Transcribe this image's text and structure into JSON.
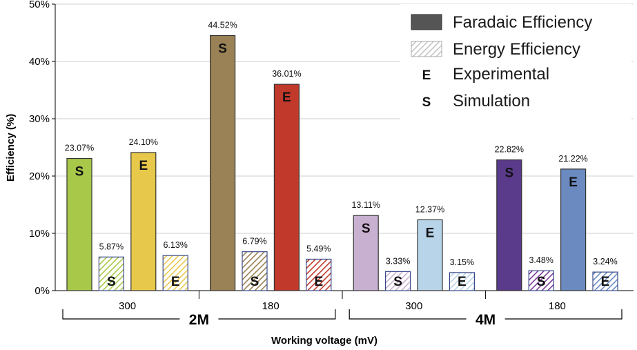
{
  "chart_data": {
    "type": "bar",
    "xlabel": "Working voltage (mV)",
    "ylabel": "Efficiency (%)",
    "ylim": [
      0,
      50
    ],
    "yticks": [
      "0%",
      "10%",
      "20%",
      "30%",
      "40%",
      "50%"
    ],
    "legend": {
      "position": "top-right",
      "entries": [
        {
          "label": "Faradaic Efficiency",
          "style": "solid",
          "color": "#555555"
        },
        {
          "label": "Energy Efficiency",
          "style": "hatched",
          "color": "#c8c8c8"
        },
        {
          "label": "Experimental",
          "symbol": "E"
        },
        {
          "label": "Simulation",
          "symbol": "S"
        }
      ]
    },
    "groups": [
      {
        "concentration": "2M",
        "voltages": [
          "300",
          "180"
        ]
      },
      {
        "concentration": "4M",
        "voltages": [
          "300",
          "180"
        ]
      }
    ],
    "bars": [
      {
        "concentration": "2M",
        "voltage": "300",
        "metric": "Faradaic Efficiency",
        "source": "S",
        "value": 23.07,
        "label": "23.07%",
        "color": "#a8c84a"
      },
      {
        "concentration": "2M",
        "voltage": "300",
        "metric": "Energy Efficiency",
        "source": "S",
        "value": 5.87,
        "label": "5.87%",
        "color": "#a8c84a"
      },
      {
        "concentration": "2M",
        "voltage": "300",
        "metric": "Faradaic Efficiency",
        "source": "E",
        "value": 24.1,
        "label": "24.10%",
        "color": "#e8c84a"
      },
      {
        "concentration": "2M",
        "voltage": "300",
        "metric": "Energy Efficiency",
        "source": "E",
        "value": 6.13,
        "label": "6.13%",
        "color": "#e8c84a"
      },
      {
        "concentration": "2M",
        "voltage": "180",
        "metric": "Faradaic Efficiency",
        "source": "S",
        "value": 44.52,
        "label": "44.52%",
        "color": "#9a8256"
      },
      {
        "concentration": "2M",
        "voltage": "180",
        "metric": "Energy Efficiency",
        "source": "S",
        "value": 6.79,
        "label": "6.79%",
        "color": "#9a8256"
      },
      {
        "concentration": "2M",
        "voltage": "180",
        "metric": "Faradaic Efficiency",
        "source": "E",
        "value": 36.01,
        "label": "36.01%",
        "color": "#c0392b"
      },
      {
        "concentration": "2M",
        "voltage": "180",
        "metric": "Energy Efficiency",
        "source": "E",
        "value": 5.49,
        "label": "5.49%",
        "color": "#c0392b"
      },
      {
        "concentration": "4M",
        "voltage": "300",
        "metric": "Faradaic Efficiency",
        "source": "S",
        "value": 13.11,
        "label": "13.11%",
        "color": "#c8b0d0"
      },
      {
        "concentration": "4M",
        "voltage": "300",
        "metric": "Energy Efficiency",
        "source": "S",
        "value": 3.33,
        "label": "3.33%",
        "color": "#c8b0d0"
      },
      {
        "concentration": "4M",
        "voltage": "300",
        "metric": "Faradaic Efficiency",
        "source": "E",
        "value": 12.37,
        "label": "12.37%",
        "color": "#b8d4e8"
      },
      {
        "concentration": "4M",
        "voltage": "300",
        "metric": "Energy Efficiency",
        "source": "E",
        "value": 3.15,
        "label": "3.15%",
        "color": "#b8d4e8"
      },
      {
        "concentration": "4M",
        "voltage": "180",
        "metric": "Faradaic Efficiency",
        "source": "S",
        "value": 22.82,
        "label": "22.82%",
        "color": "#5a3a8a"
      },
      {
        "concentration": "4M",
        "voltage": "180",
        "metric": "Energy Efficiency",
        "source": "S",
        "value": 3.48,
        "label": "3.48%",
        "color": "#7a3a9a"
      },
      {
        "concentration": "4M",
        "voltage": "180",
        "metric": "Faradaic Efficiency",
        "source": "E",
        "value": 21.22,
        "label": "21.22%",
        "color": "#6a8ac0"
      },
      {
        "concentration": "4M",
        "voltage": "180",
        "metric": "Energy Efficiency",
        "source": "E",
        "value": 3.24,
        "label": "3.24%",
        "color": "#6a8ac0"
      }
    ]
  }
}
